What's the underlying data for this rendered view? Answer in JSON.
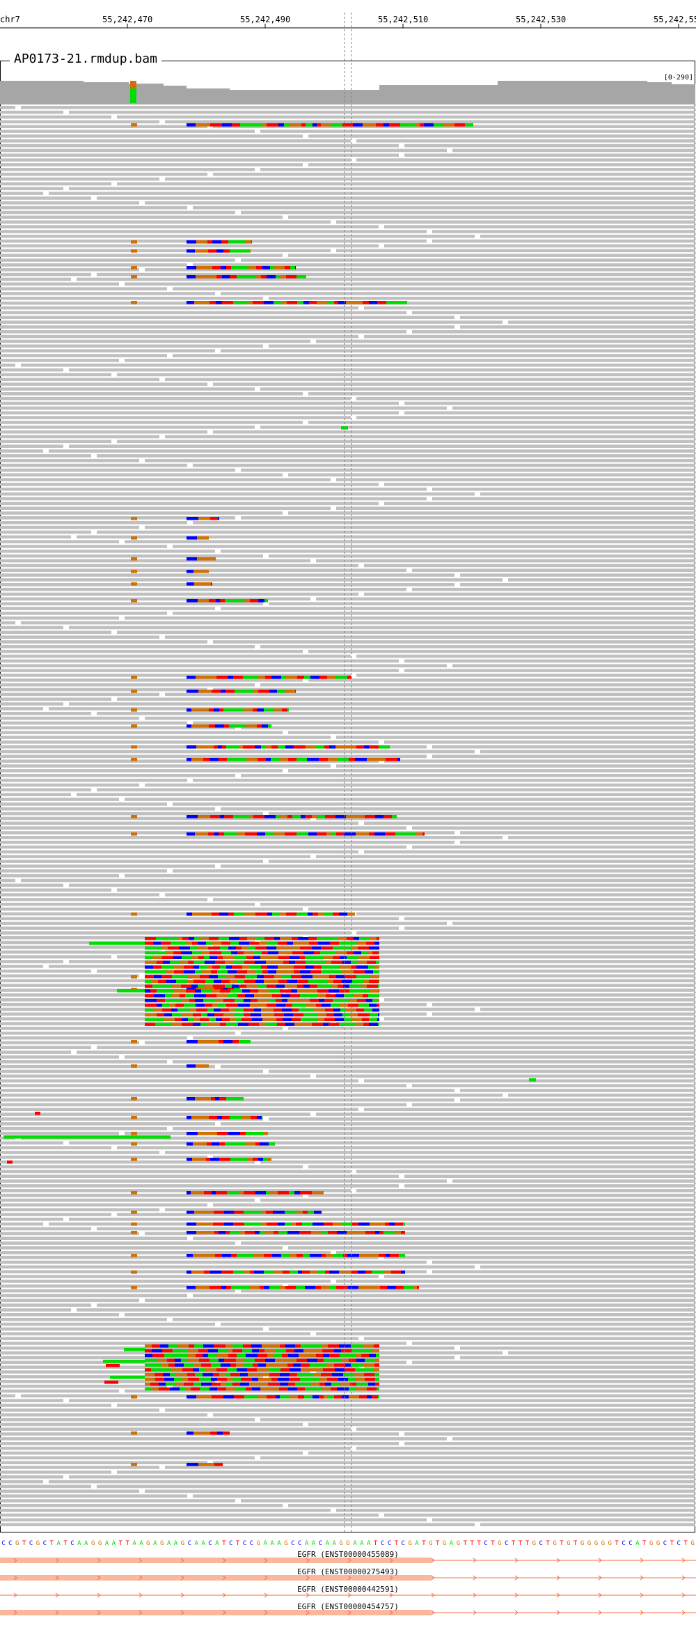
{
  "ruler": {
    "chrom": "chr7",
    "ticks": [
      "55,242,470",
      "55,242,490",
      "55,242,510",
      "55,242,530",
      "55,242,55"
    ]
  },
  "track": {
    "name": "AP0173-21.rmdup.bam",
    "scale": "[0-290]"
  },
  "sequence": "CCGTCGCTATCAAGGAATTAAGAGAAGCAACATCTCCGAAAGCCAACAAGGAAATCCTCGATGTGAGTTTCTGCTTTGCTGTGTGGGGGTCCATGGCTCTG",
  "transcripts": [
    "EGFR (ENST00000455089)",
    "EGFR (ENST00000275493)",
    "EGFR (ENST00000442591)",
    "EGFR (ENST00000454757)"
  ],
  "colors": {
    "read": "#c0c0c0",
    "coverage": "#a6a6a6",
    "A": "#00dd00",
    "C": "#0000ff",
    "G": "#d17105",
    "T": "#ff0000",
    "exon": "#f9b79e",
    "intron": "#f46d43"
  }
}
